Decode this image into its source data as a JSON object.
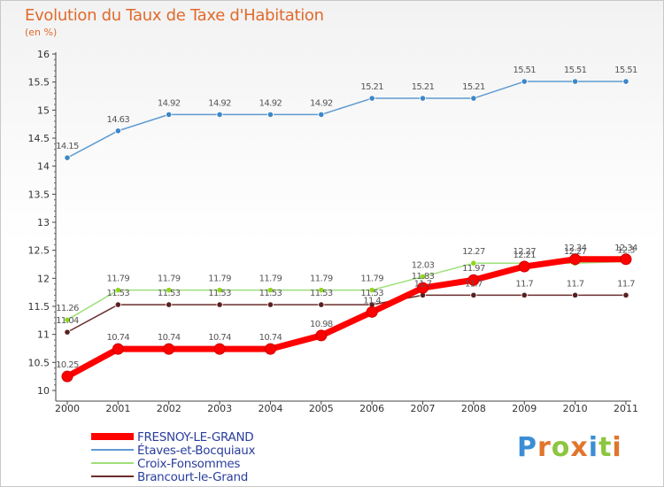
{
  "title": "Evolution du Taux de Taxe d'Habitation",
  "unit": "(en %)",
  "brand": {
    "letters": [
      "P",
      "r",
      "o",
      "x",
      "i",
      "t",
      "i"
    ],
    "colors": [
      "#3b8ed4",
      "#e0762b",
      "#8cc63f",
      "#e0762b",
      "#3b8ed4",
      "#8cc63f",
      "#e0762b"
    ]
  },
  "chart_data": {
    "type": "line",
    "title": "Evolution du Taux de Taxe d'Habitation",
    "ylabel": "(en %)",
    "xlabel": "",
    "x": [
      "2000",
      "2001",
      "2002",
      "2003",
      "2004",
      "2005",
      "2006",
      "2007",
      "2008",
      "2009",
      "2010",
      "2011"
    ],
    "ylim": [
      10,
      16
    ],
    "yticks": [
      "10",
      "10.5",
      "11",
      "11.5",
      "12",
      "12.5",
      "13",
      "13.5",
      "14",
      "14.5",
      "15",
      "15.5",
      "16"
    ],
    "grid": false,
    "legend_position": "bottom-left",
    "series": [
      {
        "name": "FRESNOY-LE-GRAND",
        "color": "#ff0000",
        "values": [
          10.25,
          10.74,
          10.74,
          10.74,
          10.74,
          10.98,
          11.4,
          11.83,
          11.97,
          12.21,
          12.34,
          12.34
        ],
        "labels": [
          "10.25",
          "10.74",
          "10.74",
          "10.74",
          "10.74",
          "10.98",
          "11.4",
          "11.83",
          "11.97",
          "12.21",
          "12.34",
          "12.34"
        ]
      },
      {
        "name": "Étaves-et-Bocquiaux",
        "color": "#5f9bd0",
        "values": [
          14.15,
          14.63,
          14.92,
          14.92,
          14.92,
          14.92,
          15.21,
          15.21,
          15.21,
          15.51,
          15.51,
          15.51
        ],
        "labels": [
          "14.15",
          "14.63",
          "14.92",
          "14.92",
          "14.92",
          "14.92",
          "15.21",
          "15.21",
          "15.21",
          "15.51",
          "15.51",
          "15.51"
        ]
      },
      {
        "name": "Croix-Fonsommes",
        "color": "#9ee07a",
        "values": [
          11.26,
          11.79,
          11.79,
          11.79,
          11.79,
          11.79,
          11.79,
          12.03,
          12.27,
          12.27,
          12.27,
          12.3
        ],
        "labels": [
          "11.26",
          "11.79",
          "11.79",
          "11.79",
          "11.79",
          "11.79",
          "11.79",
          "12.03",
          "12.27",
          "12.27",
          "12.27",
          "12.3"
        ]
      },
      {
        "name": "Brancourt-le-Grand",
        "color": "#6b2c2c",
        "values": [
          11.04,
          11.53,
          11.53,
          11.53,
          11.53,
          11.53,
          11.53,
          11.7,
          11.7,
          11.7,
          11.7,
          11.7
        ],
        "labels": [
          "11.04",
          "11.53",
          "11.53",
          "11.53",
          "11.53",
          "11.53",
          "11.53",
          "11.7",
          "11.7",
          "11.7",
          "11.7",
          "11.7"
        ]
      }
    ]
  }
}
